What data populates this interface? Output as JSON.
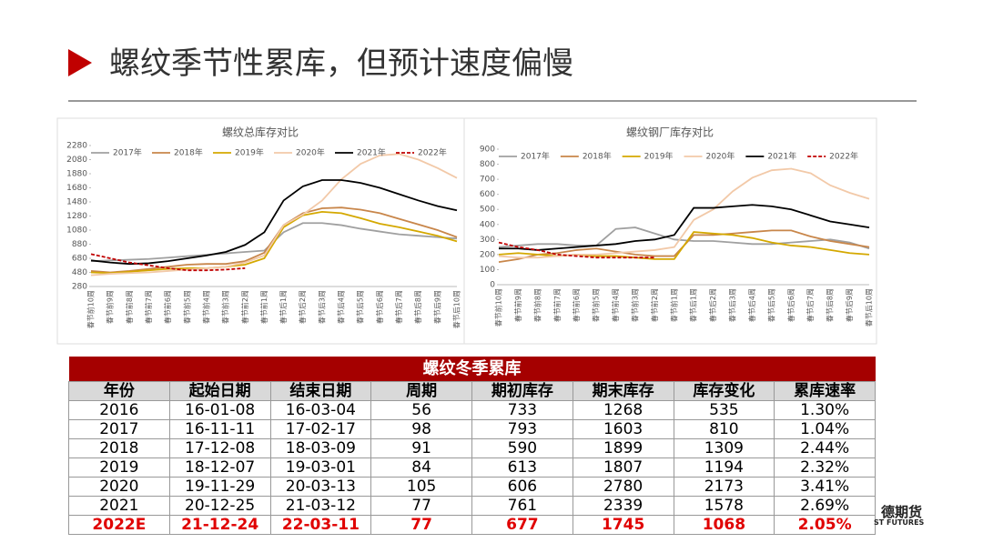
{
  "header": {
    "title": "螺纹季节性累库，但预计速度偏慢"
  },
  "chart_data": [
    {
      "type": "line",
      "title": "螺纹总库存对比",
      "categories": [
        "春节前10周",
        "春节前9周",
        "春节前8周",
        "春节前7周",
        "春节前6周",
        "春节前5周",
        "春节前4周",
        "春节前3周",
        "春节前2周",
        "春节前1周",
        "春节后1周",
        "春节后2周",
        "春节后3周",
        "春节后4周",
        "春节后5周",
        "春节后6周",
        "春节后7周",
        "春节后8周",
        "春节后9周",
        "春节后10周"
      ],
      "ylim": [
        280,
        2280
      ],
      "yticks": [
        280,
        480,
        680,
        880,
        1080,
        1280,
        1480,
        1680,
        1880,
        2080,
        2280
      ],
      "series": [
        {
          "name": "2017年",
          "color": "#a0a0a0",
          "values": [
            640,
            650,
            660,
            670,
            690,
            710,
            730,
            750,
            770,
            790,
            1050,
            1180,
            1180,
            1150,
            1100,
            1060,
            1020,
            1000,
            980,
            960
          ]
        },
        {
          "name": "2018年",
          "color": "#c8864a",
          "values": [
            500,
            480,
            500,
            530,
            560,
            590,
            600,
            600,
            640,
            760,
            1150,
            1320,
            1390,
            1400,
            1370,
            1320,
            1240,
            1160,
            1080,
            980
          ]
        },
        {
          "name": "2019年",
          "color": "#d4a800",
          "values": [
            480,
            470,
            490,
            510,
            530,
            540,
            540,
            560,
            590,
            680,
            1120,
            1290,
            1340,
            1320,
            1250,
            1170,
            1120,
            1060,
            1000,
            920
          ]
        },
        {
          "name": "2020年",
          "color": "#f2c9a8",
          "values": [
            440,
            460,
            470,
            480,
            500,
            520,
            540,
            560,
            620,
            720,
            1150,
            1300,
            1500,
            1800,
            2020,
            2140,
            2160,
            2080,
            1960,
            1820
          ]
        },
        {
          "name": "2021年",
          "color": "#000000",
          "values": [
            650,
            620,
            600,
            610,
            640,
            680,
            720,
            770,
            870,
            1050,
            1500,
            1700,
            1790,
            1790,
            1750,
            1680,
            1590,
            1500,
            1420,
            1360
          ]
        },
        {
          "name": "2022年",
          "color": "#c00000",
          "dashed": true,
          "values": [
            740,
            680,
            620,
            580,
            540,
            510,
            510,
            520,
            540,
            null,
            null,
            null,
            null,
            null,
            null,
            null,
            null,
            null,
            null,
            null
          ]
        }
      ]
    },
    {
      "type": "line",
      "title": "螺纹钢厂库存对比",
      "categories": [
        "春节前10周",
        "春节前9周",
        "春节前8周",
        "春节前7周",
        "春节前6周",
        "春节前5周",
        "春节前4周",
        "春节前3周",
        "春节前2周",
        "春节前1周",
        "春节后1周",
        "春节后2周",
        "春节后3周",
        "春节后4周",
        "春节后5周",
        "春节后6周",
        "春节后7周",
        "春节后8周",
        "春节后9周",
        "春节后10周"
      ],
      "ylim": [
        0,
        900
      ],
      "yticks": [
        0,
        100,
        200,
        300,
        400,
        500,
        600,
        700,
        800,
        900
      ],
      "series": [
        {
          "name": "2017年",
          "color": "#a0a0a0",
          "values": [
            250,
            260,
            270,
            270,
            260,
            260,
            370,
            380,
            340,
            300,
            290,
            290,
            280,
            270,
            270,
            280,
            290,
            300,
            280,
            240
          ]
        },
        {
          "name": "2018年",
          "color": "#c8864a",
          "values": [
            150,
            170,
            200,
            210,
            230,
            240,
            220,
            200,
            190,
            190,
            330,
            330,
            340,
            350,
            360,
            360,
            320,
            290,
            270,
            250
          ]
        },
        {
          "name": "2019年",
          "color": "#d4a800",
          "values": [
            200,
            210,
            200,
            190,
            200,
            190,
            190,
            180,
            170,
            170,
            350,
            340,
            330,
            310,
            280,
            260,
            250,
            230,
            210,
            200
          ]
        },
        {
          "name": "2020年",
          "color": "#f2c9a8",
          "values": [
            190,
            180,
            180,
            190,
            200,
            200,
            210,
            220,
            230,
            250,
            430,
            500,
            620,
            710,
            760,
            770,
            740,
            660,
            610,
            570
          ]
        },
        {
          "name": "2021年",
          "color": "#000000",
          "values": [
            240,
            240,
            230,
            240,
            250,
            260,
            270,
            290,
            300,
            330,
            510,
            510,
            520,
            530,
            520,
            500,
            460,
            420,
            400,
            380
          ]
        },
        {
          "name": "2022年",
          "color": "#c00000",
          "dashed": true,
          "values": [
            280,
            250,
            230,
            200,
            190,
            180,
            180,
            180,
            180,
            null,
            null,
            null,
            null,
            null,
            null,
            null,
            null,
            null,
            null,
            null
          ]
        }
      ]
    }
  ],
  "table": {
    "title": "螺纹冬季累库",
    "columns": [
      "年份",
      "起始日期",
      "结束日期",
      "周期",
      "期初库存",
      "期末库存",
      "库存变化",
      "累库速率"
    ],
    "rows": [
      [
        "2016",
        "16-01-08",
        "16-03-04",
        "56",
        "733",
        "1268",
        "535",
        "1.30%"
      ],
      [
        "2017",
        "16-11-11",
        "17-02-17",
        "98",
        "793",
        "1603",
        "810",
        "1.04%"
      ],
      [
        "2018",
        "17-12-08",
        "18-03-09",
        "91",
        "590",
        "1899",
        "1309",
        "2.44%"
      ],
      [
        "2019",
        "18-12-07",
        "19-03-01",
        "84",
        "613",
        "1807",
        "1194",
        "2.32%"
      ],
      [
        "2020",
        "19-11-29",
        "20-03-13",
        "105",
        "606",
        "2780",
        "2173",
        "3.41%"
      ],
      [
        "2021",
        "20-12-25",
        "21-03-12",
        "77",
        "761",
        "2339",
        "1578",
        "2.69%"
      ],
      [
        "2022E",
        "21-12-24",
        "22-03-11",
        "77",
        "677",
        "1745",
        "1068",
        "2.05%"
      ]
    ]
  },
  "logo": {
    "text": "德期货",
    "subtext": "ST FUTURES"
  }
}
